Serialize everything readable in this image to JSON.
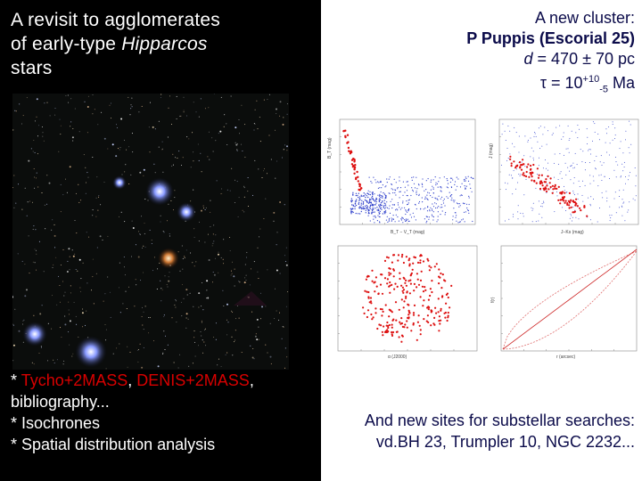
{
  "left_panel": {
    "title_line1": "A revisit to agglomerates",
    "title_line2_prefix": "of early-type ",
    "title_line2_italic": "Hipparcos",
    "title_line3": "stars",
    "bullet1_prefix": "* ",
    "bullet1_red1": "Tycho+2MASS",
    "bullet1_sep": ", ",
    "bullet1_red2": "DENIS+2MASS",
    "bullet1_suffix": ",",
    "bullet1_line2": "bibliography...",
    "bullet2": "* Isochrones",
    "bullet3": "* Spatial distribution analysis"
  },
  "right_panel": {
    "line1": "A new cluster:",
    "line2": "P Puppis (Escorial 25)",
    "line3_var": "d",
    "line3_rest": " = 470 ± 70 pc",
    "line4_tau": "τ",
    "line4_eq": " = 10",
    "line4_sup": "+10",
    "line4_sub": "-5",
    "line4_unit": " Ma",
    "footer_line1": "And new sites for substellar searches:",
    "footer_line2": "vd.BH 23, Trumpler 10, NGC 2232..."
  },
  "plots": {
    "cmd_ylabel": "B_T (mag)",
    "cmd_xlabel": "B_T − V_T (mag)",
    "nir_ylabel": "J (mag)",
    "nir_xlabel": "J−Ks (mag)",
    "map_xlabel": "α (J2000)",
    "cum_ylabel": "f(r)",
    "cum_xlabel": "r (arcsec)"
  },
  "colors": {
    "red_text": "#d80000",
    "navy_text": "#0b0b4a",
    "blue_points": "#3344cc",
    "red_points": "#dd1111"
  }
}
